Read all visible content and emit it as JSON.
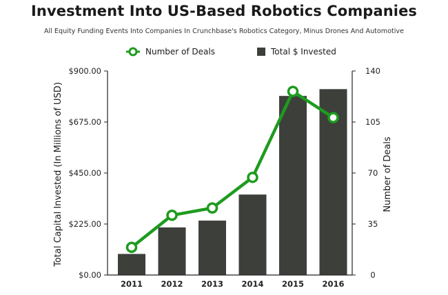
{
  "chart_data": {
    "type": "bar+line",
    "title": "Investment Into US-Based Robotics Companies",
    "subtitle": "All Equity Funding Events Into Companies In Crunchbase's Robotics Category, Minus Drones And Automotive",
    "categories": [
      "2011",
      "2012",
      "2013",
      "2014",
      "2015",
      "2016"
    ],
    "series": [
      {
        "name": "Total $ Invested",
        "type": "bar",
        "axis": "left",
        "color": "#3d3f3b",
        "values": [
          93,
          210,
          240,
          355,
          790,
          820
        ]
      },
      {
        "name": "Number of Deals",
        "type": "line",
        "axis": "right",
        "color": "#1e9b1e",
        "values": [
          19,
          41,
          46,
          67,
          126,
          108
        ]
      }
    ],
    "y_left": {
      "label": "Total Capital Invested (In Millions of USD)",
      "range": [
        0,
        900
      ],
      "ticks": [
        0,
        225,
        450,
        675,
        900
      ],
      "tick_labels": [
        "$0.00",
        "$225.00",
        "$450.00",
        "$675.00",
        "$900.00"
      ]
    },
    "y_right": {
      "label": "Number of Deals",
      "range": [
        0,
        140
      ],
      "ticks": [
        0,
        35,
        70,
        105,
        140
      ],
      "tick_labels": [
        "0",
        "35",
        "70",
        "105",
        "140"
      ]
    },
    "legend": {
      "position": "top-center",
      "items": [
        "Number of Deals",
        "Total $ Invested"
      ]
    },
    "grid": false
  }
}
